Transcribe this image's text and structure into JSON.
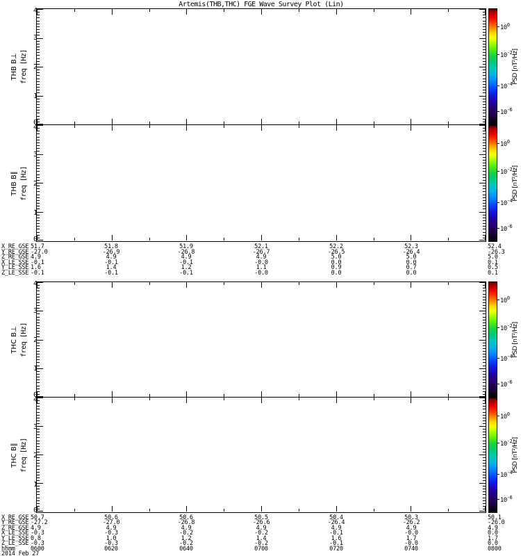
{
  "title": "Artemis(THB,THC) FGE Wave Survey Plot (Lin)",
  "panels": [
    {
      "id": "thb-bperp",
      "name": "THB B⊥",
      "ylabel": "freq [Hz]",
      "ytick_labels": [
        "4",
        "3",
        "2",
        "1",
        "0"
      ]
    },
    {
      "id": "thb-bpar",
      "name": "THB B∥",
      "ylabel": "freq [Hz]",
      "ytick_labels": [
        "4",
        "3",
        "2",
        "1",
        "0"
      ]
    },
    {
      "id": "thc-bperp",
      "name": "THC B⊥",
      "ylabel": "freq [Hz]",
      "ytick_labels": [
        "4",
        "3",
        "2",
        "1",
        "0"
      ]
    },
    {
      "id": "thc-bpar",
      "name": "THC B∥",
      "ylabel": "freq [Hz]",
      "ytick_labels": [
        "4",
        "3",
        "2",
        "1",
        "0"
      ]
    }
  ],
  "colorbar": {
    "label": "PSD [nT²/Hz]",
    "tick_base": "10",
    "tick_exponents": [
      "0",
      "-2",
      "-4",
      "-6"
    ],
    "gradient_stops": [
      "#5a0000 0%",
      "#a00000 2.5%",
      "#e80000 7%",
      "#ff3c00 12%",
      "#ff9000 17%",
      "#ffd800 21%",
      "#f8ff00 25%",
      "#b4ff00 29%",
      "#64f000 34%",
      "#1ed23c 40%",
      "#00c87d 46%",
      "#00c8b4 51%",
      "#00b4e6 57%",
      "#0082ff 63%",
      "#0046ff 69%",
      "#1414dc 75%",
      "#1e00a0 81%",
      "#28006e 87%",
      "#1e0046 92%",
      "#0f0023 96%",
      "#000000 100%"
    ]
  },
  "middle_table": {
    "rows": [
      {
        "label": "X_RE_GSE",
        "values": [
          "51.7",
          "51.8",
          "51.9",
          "52.1",
          "52.2",
          "52.3",
          "52.4"
        ]
      },
      {
        "label": "Y_RE_GSE",
        "values": [
          "-27.0",
          "-26.9",
          "-26.8",
          "-26.7",
          "-26.5",
          "-26.4",
          "-26.3"
        ]
      },
      {
        "label": "Z_RE_GSE",
        "values": [
          "4.9",
          "4.9",
          "4.9",
          "4.9",
          "5.0",
          "5.0",
          "5.0"
        ]
      },
      {
        "label": "X_LE_SSE",
        "values": [
          "-0.1",
          "-0.1",
          "-0.1",
          "-0.0",
          "0.0",
          "0.0",
          "0.1"
        ]
      },
      {
        "label": "Y_LE_SSE",
        "values": [
          "1.6",
          "1.4",
          "1.2",
          "1.1",
          "0.9",
          "0.7",
          "0.5"
        ]
      },
      {
        "label": "Z_LE_SSE",
        "values": [
          "-0.1",
          "-0.1",
          "-0.1",
          "-0.0",
          "0.0",
          "0.0",
          "0.1"
        ]
      }
    ]
  },
  "bottom_table": {
    "rows": [
      {
        "label": "X_RE_GSE",
        "values": [
          "50.7",
          "50.6",
          "50.6",
          "50.5",
          "50.4",
          "50.3",
          "50.1"
        ]
      },
      {
        "label": "Y_RE_GSE",
        "values": [
          "-27.2",
          "-27.0",
          "-26.8",
          "-26.6",
          "-26.4",
          "-26.2",
          "-26.0"
        ]
      },
      {
        "label": "Z_RE_GSE",
        "values": [
          "4.9",
          "4.9",
          "4.9",
          "4.9",
          "4.9",
          "4.9",
          "4.9"
        ]
      },
      {
        "label": "X_LE_SSE",
        "values": [
          "-0.3",
          "-0.3",
          "-0.2",
          "-0.2",
          "-0.1",
          "-0.0",
          "0.0"
        ]
      },
      {
        "label": "Y_LE_SSE",
        "values": [
          "0.8",
          "1.0",
          "1.2",
          "1.4",
          "1.6",
          "1.7",
          "1.7"
        ]
      },
      {
        "label": "Z_LE_SSE",
        "values": [
          "-0.3",
          "-0.3",
          "-0.2",
          "-0.2",
          "-0.1",
          "-0.0",
          "0.0"
        ]
      }
    ],
    "time_row": {
      "label": "hhmm",
      "values": [
        "0600",
        "0620",
        "0640",
        "0700",
        "0720",
        "0740",
        "0800"
      ]
    },
    "date": "2014 Feb 27"
  },
  "chart_data": [
    {
      "type": "heatmap",
      "title": "THB B⊥",
      "xlabel": "time hhmm (2014 Feb 27)",
      "ylabel": "freq [Hz]",
      "ylim": [
        0,
        4
      ],
      "x_ticks": [
        "0600",
        "0620",
        "0640",
        "0700",
        "0720",
        "0740",
        "0800"
      ],
      "values": [],
      "note": "blank spectrogram panel, no data plotted",
      "colorbar": {
        "label": "PSD [nT²/Hz]",
        "scale": "log",
        "tick_values": [
          1,
          0.01,
          0.0001,
          1e-06
        ]
      },
      "grid": false,
      "legend_position": "right-colorbar"
    },
    {
      "type": "heatmap",
      "title": "THB B∥",
      "xlabel": "time hhmm (2014 Feb 27)",
      "ylabel": "freq [Hz]",
      "ylim": [
        0,
        4
      ],
      "x_ticks": [
        "0600",
        "0620",
        "0640",
        "0700",
        "0720",
        "0740",
        "0800"
      ],
      "values": [],
      "note": "blank spectrogram panel, no data plotted",
      "colorbar": {
        "label": "PSD [nT²/Hz]",
        "scale": "log",
        "tick_values": [
          1,
          0.01,
          0.0001,
          1e-06
        ]
      },
      "grid": false,
      "legend_position": "right-colorbar"
    },
    {
      "type": "heatmap",
      "title": "THC B⊥",
      "xlabel": "time hhmm (2014 Feb 27)",
      "ylabel": "freq [Hz]",
      "ylim": [
        0,
        4
      ],
      "x_ticks": [
        "0600",
        "0620",
        "0640",
        "0700",
        "0720",
        "0740",
        "0800"
      ],
      "values": [],
      "note": "blank spectrogram panel, no data plotted",
      "colorbar": {
        "label": "PSD [nT²/Hz]",
        "scale": "log",
        "tick_values": [
          1,
          0.01,
          0.0001,
          1e-06
        ]
      },
      "grid": false,
      "legend_position": "right-colorbar"
    },
    {
      "type": "heatmap",
      "title": "THC B∥",
      "xlabel": "time hhmm (2014 Feb 27)",
      "ylabel": "freq [Hz]",
      "ylim": [
        0,
        4
      ],
      "x_ticks": [
        "0600",
        "0620",
        "0640",
        "0700",
        "0720",
        "0740",
        "0800"
      ],
      "values": [],
      "note": "blank spectrogram panel, no data plotted",
      "colorbar": {
        "label": "PSD [nT²/Hz]",
        "scale": "log",
        "tick_values": [
          1,
          0.01,
          0.0001,
          1e-06
        ]
      },
      "grid": false,
      "legend_position": "right-colorbar"
    }
  ],
  "colors": {
    "frame": "#000000",
    "background": "#ffffff"
  }
}
